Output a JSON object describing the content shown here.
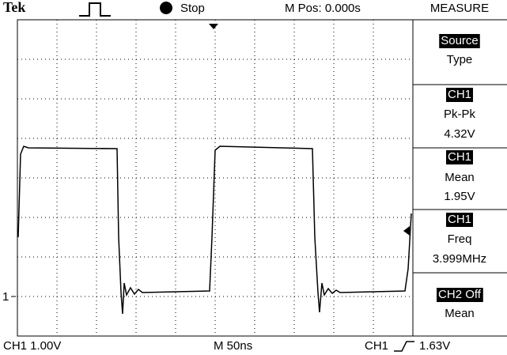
{
  "header": {
    "brand": "Tek",
    "status": "Stop",
    "position": "M Pos: 0.000s",
    "menu_title": "MEASURE"
  },
  "menu": [
    {
      "lines": [
        "Source",
        "Type"
      ]
    },
    {
      "lines": [
        "CH1",
        "Pk-Pk",
        "4.32V"
      ]
    },
    {
      "lines": [
        "CH1",
        "Mean",
        "1.95V"
      ]
    },
    {
      "lines": [
        "CH1",
        "Freq",
        "3.999MHz"
      ]
    },
    {
      "lines": [
        "CH2 Off",
        "Mean"
      ]
    }
  ],
  "footer": {
    "channel_scale": "CH1 1.00V",
    "timebase": "M 50ns",
    "trigger_source": "CH1",
    "trigger_level": "1.63V"
  },
  "ground_marker": "1"
}
